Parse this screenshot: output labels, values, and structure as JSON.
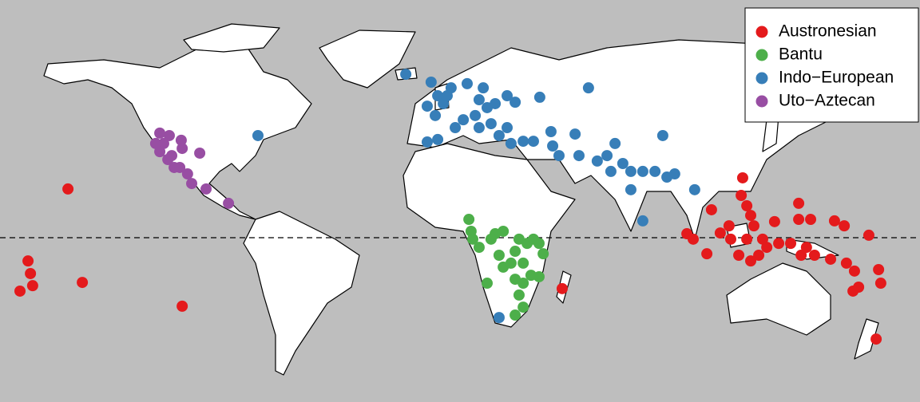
{
  "chart_data": {
    "type": "scatter",
    "series": [
      {
        "name": "Austronesian",
        "color": "#e41a1c",
        "x": [
          -157.1,
          -173.5,
          -172.5,
          -176.8,
          -171.6,
          -151.2,
          -110.2,
          45.8,
          107.1,
          119.9,
          119.3,
          121.6,
          123.2,
          124.5,
          97,
          99.6,
          105.2,
          110.7,
          114.3,
          121.6,
          126.5,
          123.2,
          118.3,
          133,
          142.9,
          142.9,
          147.8,
          157.6,
          161.6,
          171.7,
          146.1,
          149.4,
          156,
          162.5,
          165.8,
          167.5,
          165.2,
          175.7,
          176.6,
          174.7,
          134.7,
          139.6,
          129.8,
          128.1,
          115,
          143.9
        ],
        "values": [
          19.7,
          -9.4,
          -14.5,
          -21.6,
          -19.4,
          -18.1,
          -27.7,
          -20.6,
          11.3,
          24.2,
          17.1,
          12.9,
          9.0,
          4.8,
          1.6,
          -0.6,
          -6.5,
          1.9,
          4.8,
          -0.6,
          -7.1,
          -9.4,
          -7.1,
          6.5,
          13.9,
          7.4,
          7.4,
          6.8,
          4.8,
          1.0,
          -3.9,
          -7.1,
          -8.7,
          -10.3,
          -13.5,
          -20,
          -21.6,
          -12.9,
          -18.4,
          -41,
          -2.3,
          -2.3,
          -3.9,
          -0.6,
          -0.6,
          -7.1
        ]
      },
      {
        "name": "Bantu",
        "color": "#4daf4a",
        "x": [
          7.5,
          8.4,
          9.1,
          18.3,
          21.6,
          16.6,
          28.1,
          31.4,
          36.3,
          38,
          26.5,
          19.9,
          21.6,
          24.8,
          29.8,
          33,
          36.3,
          26.5,
          29.8,
          15,
          28.1,
          29.8,
          26.5,
          34,
          11.7
        ],
        "values": [
          7.4,
          2.6,
          -0.6,
          1.6,
          2.6,
          -0.6,
          -0.6,
          -2.3,
          -2.3,
          -6.5,
          -5.5,
          -7.1,
          -11.9,
          -10.3,
          -10.3,
          -15.2,
          -15.8,
          -16.8,
          -18.4,
          -18.4,
          -23.2,
          -28.1,
          -31.3,
          -0.6,
          -3.9
        ]
      },
      {
        "name": "Indo−European",
        "color": "#377eb8",
        "x": [
          -79.1,
          -18.4,
          -8,
          -5.3,
          -9.6,
          -6.3,
          -3,
          0.2,
          6.8,
          13.4,
          15,
          18.3,
          23.2,
          26.5,
          36.6,
          56.6,
          -5.3,
          -9.6,
          1.9,
          5.2,
          10.1,
          11.7,
          16.6,
          19.9,
          23.2,
          24.8,
          29.8,
          34,
          41.2,
          41.9,
          44.5,
          52.7,
          60.2,
          64.2,
          65.8,
          70.7,
          74,
          74,
          78.9,
          83.9,
          87.1,
          88.8,
          92,
          100.2,
          78.9,
          19.9,
          51.1,
          67.5,
          -1.4,
          11.7
        ],
        "values": [
          41.3,
          66.1,
          62.9,
          57.4,
          53.2,
          49.4,
          54.2,
          60.6,
          62.3,
          60.6,
          52.6,
          54.2,
          57.4,
          54.8,
          56.8,
          60.6,
          39.7,
          38.7,
          44.5,
          47.7,
          49.4,
          44.5,
          46.1,
          41.3,
          44.5,
          38.1,
          39,
          39,
          42.9,
          37.1,
          33.2,
          33.2,
          31,
          33.2,
          26.8,
          30,
          26.8,
          19.4,
          26.8,
          26.8,
          41.3,
          24.5,
          25.8,
          19.4,
          6.8,
          -32.3,
          41.9,
          38.1,
          57.4,
          55.8
        ]
      },
      {
        "name": "Uto−Aztecan",
        "color": "#984ea3",
        "x": [
          -119.4,
          -115.5,
          -110.6,
          -110.2,
          -103,
          -117.8,
          -119.4,
          -116.1,
          -113.5,
          -111.2,
          -108,
          -106.3,
          -100.4,
          -91.2,
          -121.1,
          -114.5
        ],
        "values": [
          42.3,
          41.3,
          39.4,
          36.1,
          34.2,
          38.1,
          34.8,
          31.6,
          28.4,
          28.4,
          25.8,
          21.9,
          19.7,
          13.9,
          38.1,
          33.2
        ]
      }
    ]
  }
}
